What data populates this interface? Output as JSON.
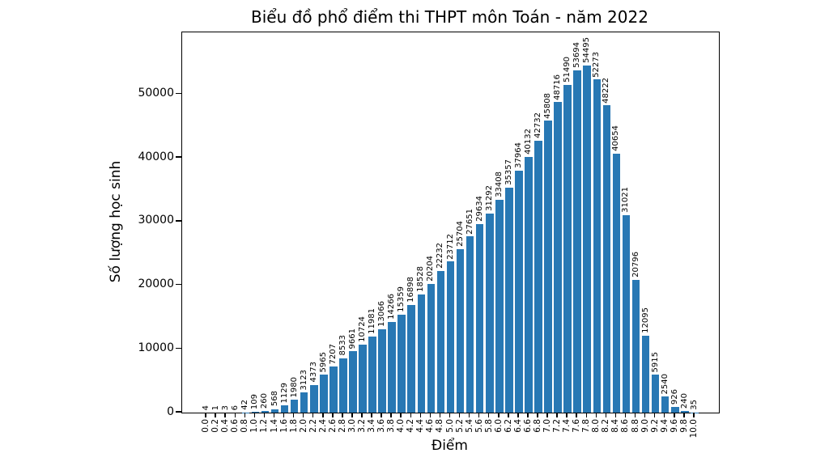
{
  "chart_data": {
    "type": "bar",
    "title": "Biểu đồ phổ điểm thi THPT môn Toán - năm 2022",
    "xlabel": "Điểm",
    "ylabel": "Số lượng học sinh",
    "categories": [
      "0.0",
      "0.2",
      "0.4",
      "0.6",
      "0.8",
      "1.0",
      "1.2",
      "1.4",
      "1.6",
      "1.8",
      "2.0",
      "2.2",
      "2.4",
      "2.6",
      "2.8",
      "3.0",
      "3.2",
      "3.4",
      "3.6",
      "3.8",
      "4.0",
      "4.2",
      "4.4",
      "4.6",
      "4.8",
      "5.0",
      "5.2",
      "5.4",
      "5.6",
      "5.8",
      "6.0",
      "6.2",
      "6.4",
      "6.6",
      "6.8",
      "7.0",
      "7.2",
      "7.4",
      "7.6",
      "7.8",
      "8.0",
      "8.2",
      "8.4",
      "8.6",
      "8.8",
      "9.0",
      "9.2",
      "9.4",
      "9.6",
      "9.8",
      "10.0"
    ],
    "values": [
      4,
      1,
      3,
      6,
      42,
      109,
      260,
      568,
      1129,
      1980,
      3123,
      4373,
      5965,
      7207,
      8533,
      9661,
      10724,
      11981,
      13066,
      14266,
      15359,
      16898,
      18528,
      20204,
      22232,
      23712,
      25704,
      27651,
      29634,
      31292,
      33408,
      35357,
      37964,
      40132,
      42732,
      45808,
      48716,
      51490,
      53694,
      54495,
      52273,
      48222,
      40654,
      31021,
      20796,
      12095,
      5915,
      2540,
      926,
      240,
      35
    ],
    "y_ticks": [
      0,
      10000,
      20000,
      30000,
      40000,
      50000
    ],
    "ylim": [
      0,
      59700
    ],
    "bar_color": "#2878b4",
    "text_color": "#000000",
    "grid": false,
    "legend_position": "none",
    "value_labels_rotation": 90,
    "x_tick_rotation": 90
  }
}
